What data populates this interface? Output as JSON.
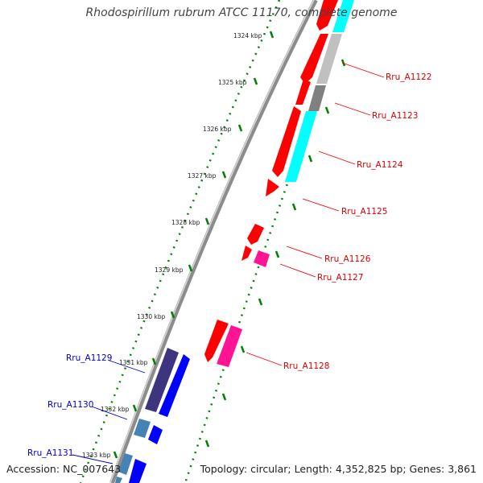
{
  "header": {
    "title": "Rhodospirillum rubrum ATCC 11170, complete genome"
  },
  "footer": {
    "accession": "Accession: NC_007643",
    "summary": "Topology: circular; Length: 4,352,825 bp; Genes: 3,861"
  },
  "ruler": {
    "ticks": [
      "1324 kbp",
      "1325 kbp",
      "1326 kbp",
      "1327 kbp",
      "1328 kbp",
      "1329 kbp",
      "1330 kbp",
      "1331 kbp",
      "1332 kbp",
      "1333 kbp"
    ]
  },
  "gene_labels": {
    "forward": [
      "Rru_A1122",
      "Rru_A1123",
      "Rru_A1124",
      "Rru_A1125",
      "Rru_A1126",
      "Rru_A1127",
      "Rru_A1128"
    ],
    "reverse": [
      "Rru_A1129",
      "Rru_A1130",
      "Rru_A1131"
    ]
  },
  "colors": {
    "forward_cds": "#ff0000",
    "trna": "#ff1493",
    "rna": "#00ffff",
    "reverse_cds": "#0000ff",
    "reverse_dark": "#3d3580",
    "reverse_steel": "#4682b4",
    "gray": "#808080",
    "light_gray": "#c0c0c0",
    "tick_green": "#008000",
    "backbone": "#8c8c8c"
  }
}
